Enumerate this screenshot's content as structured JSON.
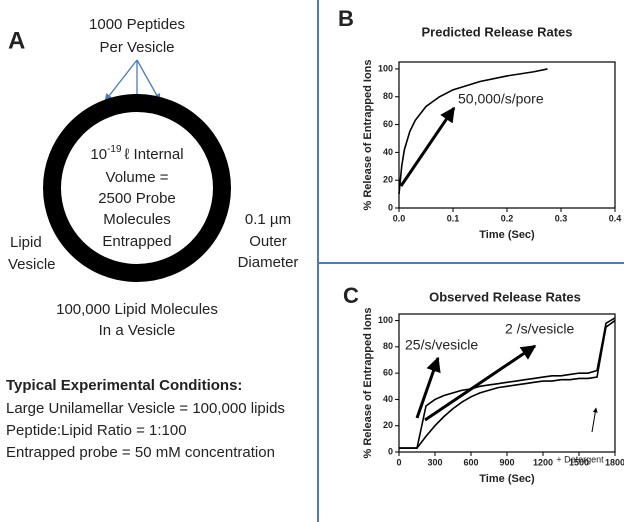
{
  "panel_a": {
    "letter": "A",
    "peptides": [
      "1000 Peptides",
      "Per Vesicle"
    ],
    "volume_base": "10",
    "volume_exp": "-19",
    "volume_rest": "ℓ Internal",
    "inner": [
      "Volume =",
      "2500 Probe",
      "Molecules",
      "Entrapped"
    ],
    "diameter": [
      "0.1 µm",
      "Outer",
      "Diameter"
    ],
    "lipid": [
      "Lipid",
      "Vesicle"
    ],
    "molecules": [
      "100,000 Lipid Molecules",
      "In a Vesicle"
    ],
    "conditions_title": "Typical Experimental Conditions:",
    "conditions": [
      "Large Unilamellar Vesicle = 100,000 lipids",
      "Peptide:Lipid  Ratio = 1:100",
      "Entrapped probe = 50 mM concentration"
    ]
  },
  "chart_data": [
    {
      "type": "line",
      "letter": "B",
      "title": "Predicted Release Rates",
      "x_label": "Time (Sec)",
      "y_label": "% Release of Entrapped Ions",
      "x": [
        0,
        0.005,
        0.01,
        0.02,
        0.03,
        0.05,
        0.075,
        0.1,
        0.15,
        0.2,
        0.25,
        0.275
      ],
      "series": [
        {
          "color": "#000000",
          "values": [
            10,
            30,
            42,
            55,
            63,
            73,
            80,
            85,
            91,
            95,
            98,
            100
          ]
        }
      ],
      "annotations": [
        "50,000/s/pore"
      ],
      "xlim": [
        0,
        0.4
      ],
      "xticks": [
        {
          "value": 0,
          "label": "0.0"
        },
        0.1,
        0.2,
        0.3,
        0.4
      ],
      "ylim": [
        0,
        105
      ],
      "yticks": [
        0,
        20,
        40,
        60,
        80,
        100
      ]
    },
    {
      "type": "line",
      "letter": "C",
      "title": "Observed Release Rates",
      "x_label": "Time (Sec)",
      "y_label": "% Release of Entrapped Ions",
      "x": [
        0,
        75,
        150,
        225,
        300,
        375,
        450,
        525,
        600,
        675,
        750,
        825,
        900,
        975,
        1050,
        1125,
        1200,
        1275,
        1350,
        1425,
        1500,
        1575,
        1650,
        1725,
        1800
      ],
      "series": [
        {
          "color": "#000000",
          "values": [
            3,
            3,
            3,
            35,
            40,
            43,
            45,
            47,
            48,
            50,
            51,
            52,
            53,
            54,
            55,
            56,
            57,
            58,
            58,
            59,
            60,
            60,
            62,
            98,
            102
          ]
        },
        {
          "color": "#000000",
          "values": [
            3,
            3,
            3,
            12,
            20,
            27,
            33,
            38,
            42,
            45,
            47,
            49,
            50,
            51,
            52,
            53,
            54,
            54,
            55,
            55,
            56,
            56,
            57,
            95,
            100
          ]
        }
      ],
      "annotations": [
        "25/s/vesicle",
        "2 /s/vesicle",
        "+ Detergent"
      ],
      "xlim": [
        0,
        1800
      ],
      "xticks": [
        0,
        300,
        600,
        900,
        1200,
        1500,
        1800
      ],
      "ylim": [
        0,
        105
      ],
      "yticks": [
        0,
        20,
        40,
        60,
        80,
        100
      ]
    }
  ]
}
